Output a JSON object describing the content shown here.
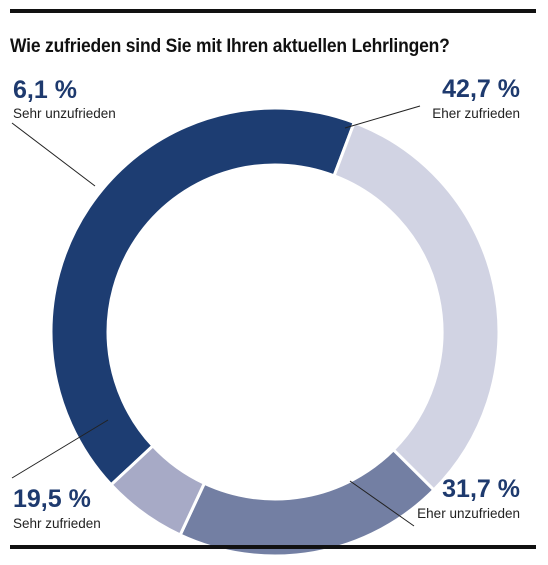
{
  "title": "Wie zufrieden sind Sie mit Ihren aktuellen Lehrlingen?",
  "chart_data": {
    "type": "pie",
    "variant": "donut",
    "slices": [
      {
        "label": "Eher zufrieden",
        "value": 42.7,
        "display": "42,7 %",
        "color": "#1d3d72"
      },
      {
        "label": "Eher unzufrieden",
        "value": 31.7,
        "display": "31,7 %",
        "color": "#d1d3e3"
      },
      {
        "label": "Sehr zufrieden",
        "value": 19.5,
        "display": "19,5 %",
        "color": "#737fa3"
      },
      {
        "label": "Sehr unzufrieden",
        "value": 6.1,
        "display": "6,1 %",
        "color": "#a7aac6"
      }
    ]
  }
}
